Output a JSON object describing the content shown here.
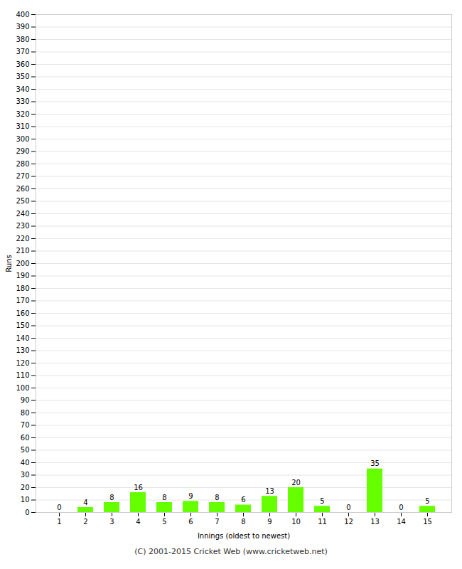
{
  "chart_data": {
    "type": "bar",
    "categories": [
      "1",
      "2",
      "3",
      "4",
      "5",
      "6",
      "7",
      "8",
      "9",
      "10",
      "11",
      "12",
      "13",
      "14",
      "15"
    ],
    "values": [
      0,
      4,
      8,
      16,
      8,
      9,
      8,
      6,
      13,
      20,
      5,
      0,
      35,
      0,
      5
    ],
    "color": "#66ff00",
    "xlabel": "Innings (oldest to newest)",
    "ylabel": "Runs",
    "ylim": [
      0,
      400
    ],
    "yticks": [
      0,
      10,
      20,
      30,
      40,
      50,
      60,
      70,
      80,
      90,
      100,
      110,
      120,
      130,
      140,
      150,
      160,
      170,
      180,
      190,
      200,
      210,
      220,
      230,
      240,
      250,
      260,
      270,
      280,
      290,
      300,
      310,
      320,
      330,
      340,
      350,
      360,
      370,
      380,
      390,
      400
    ],
    "grid": true,
    "data_labels": true,
    "caption": "(C) 2001-2015 Cricket Web (www.cricketweb.net)"
  }
}
